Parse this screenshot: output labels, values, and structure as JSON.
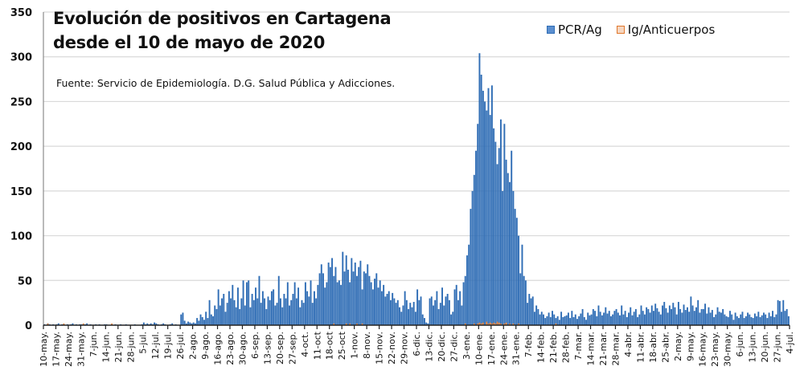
{
  "chart_data": {
    "type": "bar",
    "title": [
      "Evolución de positivos en Cartagena",
      "desde el 10 de mayo de 2020"
    ],
    "subtitle": "Fuente: Servicio de Epidemiología. D.G. Salud Pública y Adicciones.",
    "xlabel": "",
    "ylabel": "",
    "ylim": [
      0,
      350
    ],
    "yticks": [
      0,
      50,
      100,
      150,
      200,
      250,
      300,
      350
    ],
    "grid": true,
    "legend_position": "top-right",
    "legend": [
      {
        "name": "PCR/Ag",
        "color": "#2f6db5"
      },
      {
        "name": "Ig/Anticuerpos",
        "color": "#e0772b"
      }
    ],
    "x_start": "10-may-2020",
    "x_tick_labels": [
      "10-may.",
      "17-may.",
      "24-may.",
      "31-may.",
      "7-jun.",
      "14-jun.",
      "21-jun.",
      "28-jun.",
      "5-jul.",
      "12-jul.",
      "19-jul.",
      "26-jul.",
      "2-ago.",
      "9-ago.",
      "16-ago.",
      "23-ago.",
      "30-ago.",
      "6-sep.",
      "13-sep.",
      "20-sep.",
      "27-sep.",
      "4-oct.",
      "11-oct",
      "18-oct",
      "25-oct",
      "1-nov.",
      "8-nov.",
      "15-nov.",
      "22-nov.",
      "29-nov.",
      "6-dic.",
      "13-dic.",
      "20-dic.",
      "27-dic.",
      "3-ene.",
      "10-ene.",
      "17-ene.",
      "24-ene.",
      "31-ene.",
      "7-feb.",
      "14-feb.",
      "21-feb.",
      "28-feb.",
      "7-mar.",
      "14-mar.",
      "21-mar.",
      "28-mar.",
      "4-abr.",
      "11-abr.",
      "18-abr.",
      "25-abr.",
      "2-may.",
      "9-may.",
      "16-may.",
      "23-may.",
      "30-may.",
      "6-jun.",
      "13-jun.",
      "20-jun.",
      "27-jun.",
      "4-jul."
    ],
    "series": [
      {
        "name": "PCR/Ag",
        "daily_values_by_week": [
          [
            1,
            0,
            2,
            1,
            0,
            1,
            0
          ],
          [
            1,
            2,
            0,
            1,
            1,
            0,
            1
          ],
          [
            0,
            1,
            2,
            0,
            1,
            0,
            1
          ],
          [
            1,
            0,
            1,
            2,
            0,
            1,
            0
          ],
          [
            0,
            1,
            0,
            1,
            0,
            0,
            1
          ],
          [
            1,
            0,
            0,
            1,
            0,
            1,
            0
          ],
          [
            0,
            1,
            0,
            0,
            1,
            0,
            0
          ],
          [
            0,
            0,
            1,
            0,
            0,
            0,
            1
          ],
          [
            3,
            1,
            2,
            1,
            2,
            1,
            3
          ],
          [
            2,
            1,
            0,
            1,
            2,
            1,
            0
          ],
          [
            0,
            1,
            2,
            0,
            1,
            0,
            0
          ],
          [
            12,
            14,
            5,
            2,
            4,
            3,
            2
          ],
          [
            3,
            2,
            8,
            5,
            12,
            9,
            6
          ],
          [
            15,
            8,
            28,
            12,
            10,
            22,
            18
          ],
          [
            40,
            22,
            30,
            35,
            15,
            25,
            38
          ],
          [
            30,
            45,
            28,
            20,
            42,
            18,
            30
          ],
          [
            50,
            22,
            48,
            50,
            20,
            35,
            28
          ],
          [
            42,
            30,
            55,
            25,
            38,
            30,
            18
          ],
          [
            32,
            28,
            38,
            40,
            22,
            25,
            55
          ],
          [
            30,
            20,
            35,
            30,
            48,
            22,
            28
          ],
          [
            35,
            48,
            30,
            42,
            20,
            28,
            25
          ],
          [
            48,
            38,
            32,
            50,
            25,
            38,
            30
          ],
          [
            45,
            58,
            68,
            58,
            42,
            48,
            70
          ],
          [
            65,
            75,
            55,
            65,
            48,
            50,
            45
          ],
          [
            82,
            60,
            78,
            62,
            48,
            75,
            60
          ],
          [
            70,
            55,
            65,
            72,
            40,
            60,
            58
          ],
          [
            68,
            55,
            48,
            40,
            52,
            58,
            42
          ],
          [
            50,
            38,
            45,
            32,
            35,
            38,
            28
          ],
          [
            36,
            30,
            25,
            28,
            20,
            15,
            22
          ],
          [
            38,
            28,
            18,
            25,
            20,
            26,
            15
          ],
          [
            40,
            28,
            32,
            12,
            8,
            3,
            2
          ],
          [
            30,
            32,
            22,
            28,
            38,
            18,
            25
          ],
          [
            42,
            22,
            32,
            35,
            28,
            12,
            15
          ],
          [
            40,
            45,
            28,
            38,
            22,
            48,
            55
          ],
          [
            78,
            90,
            130,
            150,
            168,
            195,
            225
          ],
          [
            304,
            280,
            262,
            250,
            240,
            265,
            235
          ],
          [
            268,
            220,
            205,
            180,
            198,
            230,
            150
          ],
          [
            225,
            185,
            170,
            160,
            195,
            150,
            130
          ],
          [
            120,
            100,
            58,
            90,
            55,
            50,
            25
          ],
          [
            35,
            30,
            32,
            15,
            22,
            18,
            12
          ],
          [
            15,
            12,
            8,
            10,
            14,
            9,
            16
          ],
          [
            12,
            8,
            10,
            6,
            15,
            9,
            10
          ],
          [
            11,
            14,
            8,
            16,
            9,
            12,
            7
          ],
          [
            10,
            13,
            18,
            9,
            6,
            14,
            11
          ],
          [
            12,
            18,
            16,
            10,
            22,
            15,
            11
          ],
          [
            14,
            20,
            13,
            16,
            10,
            12,
            16
          ],
          [
            18,
            14,
            11,
            22,
            12,
            16,
            9
          ],
          [
            14,
            20,
            11,
            15,
            18,
            9,
            12
          ],
          [
            22,
            16,
            12,
            20,
            18,
            14,
            22
          ],
          [
            16,
            24,
            19,
            15,
            12,
            22,
            26
          ],
          [
            19,
            14,
            22,
            18,
            25,
            20,
            12
          ],
          [
            26,
            18,
            14,
            23,
            17,
            20,
            15
          ],
          [
            32,
            22,
            16,
            20,
            28,
            14,
            18
          ],
          [
            18,
            24,
            13,
            20,
            14,
            17,
            9
          ],
          [
            12,
            20,
            15,
            14,
            18,
            12,
            10
          ],
          [
            9,
            16,
            12,
            6,
            14,
            10,
            8
          ],
          [
            12,
            15,
            8,
            10,
            14,
            12,
            9
          ],
          [
            8,
            13,
            10,
            15,
            9,
            11,
            14
          ],
          [
            12,
            8,
            14,
            10,
            16,
            9,
            12
          ],
          [
            28,
            27,
            15,
            28,
            16,
            18,
            10
          ]
        ]
      },
      {
        "name": "Ig/Anticuerpos",
        "daily_values_by_week_note": "near-zero values, visible only as tiny marks",
        "daily_values_by_week": [
          [
            0,
            0,
            1,
            0,
            0,
            0,
            0
          ],
          [
            0,
            0,
            0,
            0,
            1,
            0,
            0
          ],
          [
            0,
            0,
            0,
            0,
            0,
            0,
            0
          ],
          [
            0,
            1,
            0,
            0,
            0,
            0,
            0
          ],
          [
            0,
            0,
            0,
            0,
            0,
            0,
            0
          ],
          [
            0,
            0,
            0,
            1,
            0,
            0,
            0
          ],
          [
            0,
            0,
            0,
            0,
            0,
            0,
            0
          ],
          [
            0,
            0,
            0,
            0,
            0,
            0,
            0
          ],
          [
            0,
            0,
            0,
            0,
            0,
            0,
            0
          ],
          [
            0,
            0,
            0,
            0,
            0,
            0,
            0
          ],
          [
            0,
            0,
            0,
            0,
            0,
            0,
            0
          ],
          [
            0,
            0,
            0,
            0,
            0,
            0,
            0
          ],
          [
            0,
            0,
            0,
            0,
            0,
            0,
            0
          ],
          [
            0,
            0,
            0,
            0,
            0,
            0,
            0
          ],
          [
            0,
            0,
            0,
            0,
            0,
            0,
            0
          ],
          [
            0,
            0,
            0,
            0,
            0,
            0,
            0
          ],
          [
            0,
            0,
            0,
            0,
            0,
            0,
            0
          ],
          [
            0,
            0,
            0,
            0,
            0,
            0,
            0
          ],
          [
            0,
            0,
            0,
            0,
            0,
            0,
            0
          ],
          [
            0,
            0,
            0,
            0,
            0,
            0,
            0
          ],
          [
            0,
            0,
            0,
            0,
            0,
            0,
            0
          ],
          [
            0,
            0,
            0,
            0,
            0,
            0,
            0
          ],
          [
            0,
            0,
            0,
            0,
            0,
            0,
            0
          ],
          [
            0,
            0,
            1,
            0,
            0,
            0,
            0
          ],
          [
            0,
            0,
            1,
            0,
            1,
            0,
            0
          ],
          [
            0,
            1,
            0,
            0,
            1,
            0,
            0
          ],
          [
            0,
            0,
            0,
            0,
            0,
            0,
            0
          ],
          [
            0,
            0,
            0,
            0,
            0,
            0,
            0
          ],
          [
            0,
            0,
            0,
            0,
            0,
            0,
            0
          ],
          [
            0,
            0,
            0,
            0,
            0,
            0,
            0
          ],
          [
            0,
            0,
            0,
            0,
            0,
            0,
            0
          ],
          [
            0,
            0,
            0,
            0,
            0,
            0,
            0
          ],
          [
            0,
            0,
            0,
            0,
            0,
            0,
            0
          ],
          [
            0,
            0,
            0,
            0,
            0,
            0,
            1
          ],
          [
            0,
            0,
            0,
            0,
            1,
            0,
            1
          ],
          [
            2,
            1,
            2,
            0,
            3,
            1,
            2
          ],
          [
            1,
            2,
            1,
            3,
            2,
            1,
            0
          ],
          [
            1,
            2,
            0,
            1,
            0,
            1,
            0
          ],
          [
            0,
            1,
            0,
            0,
            0,
            0,
            0
          ],
          [
            0,
            0,
            0,
            0,
            0,
            0,
            0
          ],
          [
            0,
            0,
            0,
            0,
            0,
            0,
            0
          ],
          [
            0,
            1,
            0,
            0,
            0,
            0,
            0
          ],
          [
            0,
            0,
            0,
            0,
            0,
            0,
            0
          ],
          [
            0,
            0,
            0,
            0,
            0,
            0,
            0
          ],
          [
            0,
            0,
            0,
            0,
            0,
            0,
            0
          ],
          [
            0,
            0,
            0,
            0,
            0,
            0,
            0
          ],
          [
            0,
            0,
            0,
            0,
            0,
            0,
            0
          ],
          [
            0,
            0,
            0,
            0,
            0,
            0,
            0
          ],
          [
            0,
            0,
            0,
            0,
            0,
            0,
            0
          ],
          [
            0,
            0,
            0,
            0,
            0,
            0,
            0
          ],
          [
            0,
            0,
            0,
            0,
            0,
            0,
            0
          ],
          [
            0,
            0,
            0,
            0,
            0,
            0,
            0
          ],
          [
            0,
            0,
            0,
            0,
            0,
            0,
            0
          ],
          [
            0,
            0,
            0,
            0,
            0,
            0,
            0
          ],
          [
            0,
            0,
            0,
            0,
            0,
            0,
            0
          ],
          [
            0,
            0,
            0,
            0,
            0,
            0,
            0
          ],
          [
            0,
            0,
            0,
            0,
            0,
            0,
            0
          ],
          [
            0,
            0,
            0,
            0,
            0,
            0,
            0
          ],
          [
            0,
            0,
            0,
            0,
            0,
            0,
            0
          ],
          [
            0,
            0,
            0,
            0,
            0,
            0,
            0
          ]
        ]
      }
    ]
  }
}
